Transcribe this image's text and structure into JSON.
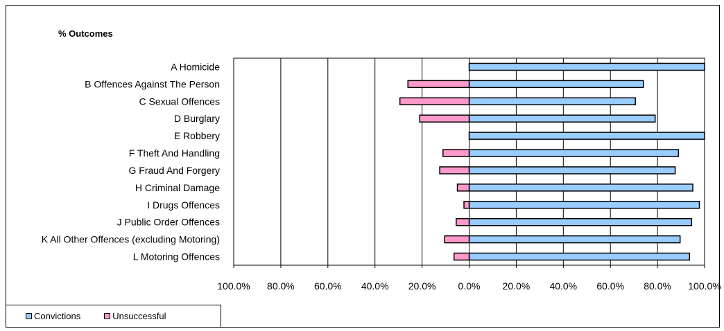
{
  "chart_data": {
    "type": "bar",
    "orientation": "horizontal",
    "title": "% Outcomes",
    "categories": [
      "A Homicide",
      "B Offences Against The Person",
      "C Sexual Offences",
      "D Burglary",
      "E Robbery",
      "F Theft And Handling",
      "G Fraud And Forgery",
      "H Criminal Damage",
      "I Drugs Offences",
      "J Public Order Offences",
      "K All Other Offences (excluding Motoring)",
      "L Motoring Offences"
    ],
    "series": [
      {
        "name": "Convictions",
        "color": "#99CCFF",
        "values": [
          100.0,
          74.0,
          70.6,
          79.0,
          100.0,
          88.9,
          87.5,
          95.0,
          97.8,
          94.5,
          89.6,
          93.6
        ]
      },
      {
        "name": "Unsuccessful",
        "color": "#FF99CC",
        "values": [
          0.0,
          26.0,
          29.4,
          21.0,
          0.0,
          11.1,
          12.5,
          5.0,
          2.2,
          5.5,
          10.4,
          6.4
        ]
      }
    ],
    "xlim": [
      -100,
      100
    ],
    "xticks": [
      "100.0%",
      "80.0%",
      "60.0%",
      "40.0%",
      "20.0%",
      "0.0%",
      "20.0%",
      "40.0%",
      "60.0%",
      "80.0%",
      "100.0%"
    ],
    "grid": true,
    "legend_position": "bottom-left"
  }
}
